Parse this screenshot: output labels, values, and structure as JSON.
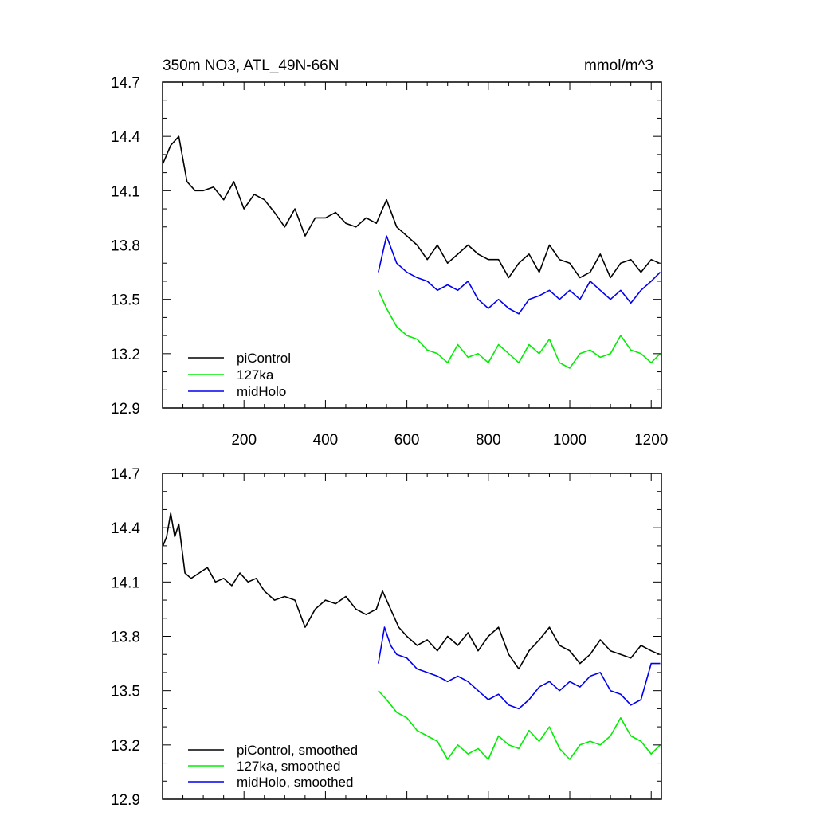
{
  "chart_data": [
    {
      "type": "line",
      "title": "350m NO3, ATL_49N-66N",
      "units": "mmol/m^3",
      "xlabel": "",
      "ylabel": "",
      "xlim": [
        0,
        1225
      ],
      "ylim": [
        12.9,
        14.7
      ],
      "xticks": [
        200,
        400,
        600,
        800,
        1000,
        1200
      ],
      "xtick_labels": [
        "200",
        "400",
        "600",
        "800",
        "1000",
        "1200"
      ],
      "yticks": [
        12.9,
        13.2,
        13.5,
        13.8,
        14.1,
        14.4,
        14.7
      ],
      "ytick_labels": [
        "12.9",
        "13.2",
        "13.5",
        "13.8",
        "14.1",
        "14.4",
        "14.7"
      ],
      "grid": false,
      "legend_position": "bottom-left",
      "series": [
        {
          "name": "piControl",
          "color": "#000000",
          "x": [
            1,
            20,
            40,
            60,
            80,
            100,
            125,
            150,
            175,
            200,
            225,
            250,
            275,
            300,
            325,
            350,
            375,
            400,
            425,
            450,
            475,
            500,
            525,
            550,
            575,
            600,
            625,
            650,
            675,
            700,
            725,
            750,
            775,
            800,
            825,
            850,
            875,
            900,
            925,
            950,
            975,
            1000,
            1025,
            1050,
            1075,
            1100,
            1125,
            1150,
            1175,
            1200,
            1220
          ],
          "y": [
            14.25,
            14.35,
            14.4,
            14.15,
            14.1,
            14.1,
            14.12,
            14.05,
            14.15,
            14.0,
            14.08,
            14.05,
            13.98,
            13.9,
            14.0,
            13.85,
            13.95,
            13.95,
            13.98,
            13.92,
            13.9,
            13.95,
            13.92,
            14.05,
            13.9,
            13.85,
            13.8,
            13.72,
            13.8,
            13.7,
            13.75,
            13.8,
            13.75,
            13.72,
            13.72,
            13.62,
            13.7,
            13.75,
            13.65,
            13.8,
            13.72,
            13.7,
            13.62,
            13.65,
            13.75,
            13.62,
            13.7,
            13.72,
            13.65,
            13.72,
            13.7
          ]
        },
        {
          "name": "127ka",
          "color": "#00ee00",
          "x": [
            530,
            550,
            575,
            600,
            625,
            650,
            675,
            700,
            725,
            750,
            775,
            800,
            825,
            850,
            875,
            900,
            925,
            950,
            975,
            1000,
            1025,
            1050,
            1075,
            1100,
            1125,
            1150,
            1175,
            1200,
            1222
          ],
          "y": [
            13.55,
            13.45,
            13.35,
            13.3,
            13.28,
            13.22,
            13.2,
            13.15,
            13.25,
            13.18,
            13.2,
            13.15,
            13.25,
            13.2,
            13.15,
            13.25,
            13.2,
            13.28,
            13.15,
            13.12,
            13.2,
            13.22,
            13.18,
            13.2,
            13.3,
            13.22,
            13.2,
            13.15,
            13.2
          ]
        },
        {
          "name": "midHolo",
          "color": "#0000ee",
          "x": [
            530,
            550,
            575,
            600,
            625,
            650,
            675,
            700,
            725,
            750,
            775,
            800,
            825,
            850,
            875,
            900,
            925,
            950,
            975,
            1000,
            1025,
            1050,
            1075,
            1100,
            1125,
            1150,
            1175,
            1200,
            1222
          ],
          "y": [
            13.65,
            13.85,
            13.7,
            13.65,
            13.62,
            13.6,
            13.55,
            13.58,
            13.55,
            13.6,
            13.5,
            13.45,
            13.5,
            13.45,
            13.42,
            13.5,
            13.52,
            13.55,
            13.5,
            13.55,
            13.5,
            13.6,
            13.55,
            13.5,
            13.55,
            13.48,
            13.55,
            13.6,
            13.65
          ]
        }
      ]
    },
    {
      "type": "line",
      "title": "",
      "xlabel": "",
      "ylabel": "",
      "xlim": [
        0,
        1225
      ],
      "ylim": [
        12.9,
        14.7
      ],
      "yticks": [
        12.9,
        13.2,
        13.5,
        13.8,
        14.1,
        14.4,
        14.7
      ],
      "ytick_labels": [
        "12.9",
        "13.2",
        "13.5",
        "13.8",
        "14.1",
        "14.4",
        "14.7"
      ],
      "grid": false,
      "legend_position": "bottom-left",
      "series": [
        {
          "name": "piControl, smoothed",
          "color": "#000000",
          "x": [
            1,
            10,
            20,
            30,
            40,
            55,
            70,
            90,
            110,
            130,
            150,
            170,
            190,
            210,
            230,
            250,
            275,
            300,
            325,
            350,
            375,
            400,
            425,
            450,
            475,
            500,
            525,
            540,
            560,
            580,
            600,
            625,
            650,
            675,
            700,
            725,
            750,
            775,
            800,
            825,
            850,
            875,
            900,
            925,
            950,
            975,
            1000,
            1025,
            1050,
            1075,
            1100,
            1125,
            1150,
            1175,
            1200,
            1220
          ],
          "y": [
            14.3,
            14.35,
            14.48,
            14.35,
            14.42,
            14.15,
            14.12,
            14.15,
            14.18,
            14.1,
            14.12,
            14.08,
            14.15,
            14.1,
            14.12,
            14.05,
            14.0,
            14.02,
            14.0,
            13.85,
            13.95,
            14.0,
            13.98,
            14.02,
            13.95,
            13.92,
            13.95,
            14.05,
            13.95,
            13.85,
            13.8,
            13.75,
            13.78,
            13.72,
            13.8,
            13.75,
            13.82,
            13.72,
            13.8,
            13.85,
            13.7,
            13.62,
            13.72,
            13.78,
            13.85,
            13.75,
            13.72,
            13.65,
            13.7,
            13.78,
            13.72,
            13.7,
            13.68,
            13.75,
            13.72,
            13.7
          ]
        },
        {
          "name": "127ka, smoothed",
          "color": "#00ee00",
          "x": [
            530,
            550,
            575,
            600,
            625,
            650,
            675,
            700,
            725,
            750,
            775,
            800,
            825,
            850,
            875,
            900,
            925,
            950,
            975,
            1000,
            1025,
            1050,
            1075,
            1100,
            1125,
            1150,
            1175,
            1200,
            1222
          ],
          "y": [
            13.5,
            13.45,
            13.38,
            13.35,
            13.28,
            13.25,
            13.22,
            13.12,
            13.2,
            13.15,
            13.18,
            13.12,
            13.25,
            13.2,
            13.18,
            13.28,
            13.22,
            13.3,
            13.18,
            13.12,
            13.2,
            13.22,
            13.2,
            13.25,
            13.35,
            13.25,
            13.22,
            13.15,
            13.2
          ]
        },
        {
          "name": "midHolo, smoothed",
          "color": "#0000ee",
          "x": [
            530,
            545,
            560,
            575,
            600,
            625,
            650,
            675,
            700,
            725,
            750,
            775,
            800,
            825,
            850,
            875,
            900,
            925,
            950,
            975,
            1000,
            1025,
            1050,
            1075,
            1100,
            1125,
            1150,
            1175,
            1200,
            1222
          ],
          "y": [
            13.65,
            13.85,
            13.75,
            13.7,
            13.68,
            13.62,
            13.6,
            13.58,
            13.55,
            13.58,
            13.55,
            13.5,
            13.45,
            13.48,
            13.42,
            13.4,
            13.45,
            13.52,
            13.55,
            13.5,
            13.55,
            13.52,
            13.58,
            13.6,
            13.5,
            13.48,
            13.42,
            13.45,
            13.65,
            13.65
          ]
        }
      ]
    }
  ]
}
